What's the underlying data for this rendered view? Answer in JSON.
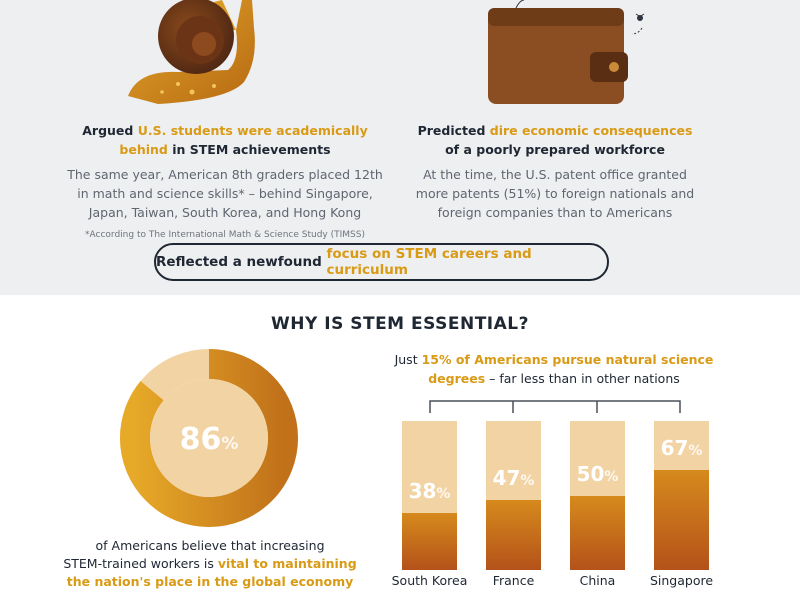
{
  "left_column": {
    "title_prefix": "Argued ",
    "title_highlight_1": "U.S. students were academically",
    "title_highlight_2": "behind",
    "title_suffix": " in STEM achievements",
    "body_lines": [
      "The same year, American 8th graders placed 12th",
      "in math and science skills* – behind Singapore,",
      "Japan, Taiwan, South Korea, and Hong Kong"
    ],
    "footnote": "*According to The International Math & Science Study (TIMSS)"
  },
  "right_column": {
    "title_prefix": "Predicted ",
    "title_highlight": "dire economic consequences",
    "title_line2": "of a poorly prepared workforce",
    "body_lines": [
      "At the time, the U.S. patent office granted",
      "more patents (51%) to foreign nationals and",
      "foreign companies than to Americans"
    ]
  },
  "pill": {
    "prefix": "Reflected a newfound ",
    "highlight": "focus on STEM careers and curriculum"
  },
  "section_title": "WHY IS STEM ESSENTIAL?",
  "donut": {
    "value_number": "86",
    "value_unit": "%",
    "fraction": 0.86,
    "caption_line1": "of Americans believe that increasing",
    "caption_line2_prefix": "STEM-trained workers is ",
    "caption_line2_highlight": "vital to maintaining",
    "caption_line3_highlight": "the nation's place in the global economy"
  },
  "degrees_heading": {
    "prefix": "Just ",
    "highlight_1": "15% of Americans pursue natural science",
    "highlight_2": "degrees",
    "suffix": " – far less than in other nations"
  },
  "chart_data": {
    "type": "bar",
    "categories": [
      "South Korea",
      "France",
      "China",
      "Singapore"
    ],
    "values": [
      38,
      47,
      50,
      67
    ],
    "value_labels": [
      "38",
      "47",
      "50",
      "67"
    ],
    "unit": "%",
    "ylim": [
      0,
      100
    ]
  },
  "colors": {
    "accent": "#d99a15",
    "bar_background": "#f2d3a4",
    "bar_fill_top": "#d68a1c",
    "bar_fill_bottom": "#b4521a",
    "dark_text": "#1f2733"
  }
}
